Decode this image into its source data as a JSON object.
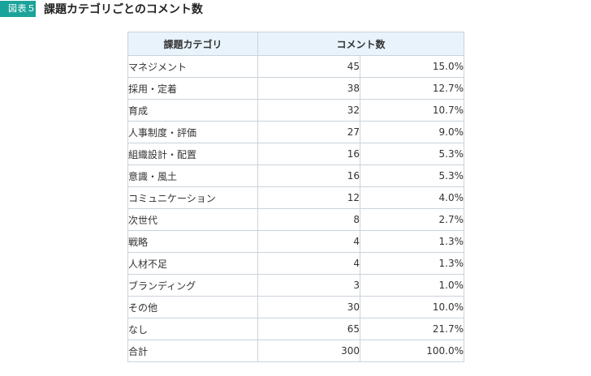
{
  "figure": {
    "badge": "図表５",
    "title": "課題カテゴリごとのコメント数"
  },
  "table": {
    "headers": [
      "課題カテゴリ",
      "コメント数"
    ],
    "rows": [
      {
        "category": "マネジメント",
        "count": "45",
        "percent": "15.0%"
      },
      {
        "category": "採用・定着",
        "count": "38",
        "percent": "12.7%"
      },
      {
        "category": "育成",
        "count": "32",
        "percent": "10.7%"
      },
      {
        "category": "人事制度・評価",
        "count": "27",
        "percent": "9.0%"
      },
      {
        "category": "組織設計・配置",
        "count": "16",
        "percent": "5.3%"
      },
      {
        "category": "意識・風土",
        "count": "16",
        "percent": "5.3%"
      },
      {
        "category": "コミュニケーション",
        "count": "12",
        "percent": "4.0%"
      },
      {
        "category": "次世代",
        "count": "8",
        "percent": "2.7%"
      },
      {
        "category": "戦略",
        "count": "4",
        "percent": "1.3%"
      },
      {
        "category": "人材不足",
        "count": "4",
        "percent": "1.3%"
      },
      {
        "category": "ブランディング",
        "count": "3",
        "percent": "1.0%"
      },
      {
        "category": "その他",
        "count": "30",
        "percent": "10.0%"
      },
      {
        "category": "なし",
        "count": "65",
        "percent": "21.7%"
      },
      {
        "category": "合計",
        "count": "300",
        "percent": "100.0%"
      }
    ]
  }
}
